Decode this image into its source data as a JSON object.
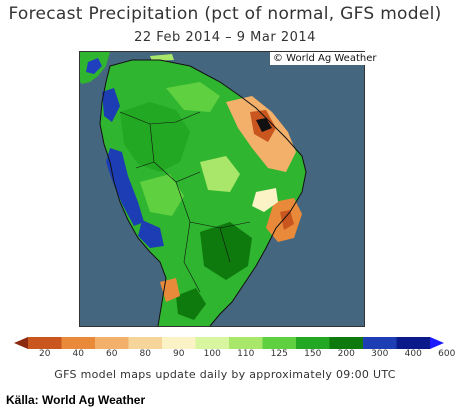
{
  "header": {
    "title": "Forecast Precipitation (pct of normal, GFS model)",
    "date_range": "22 Feb 2014 – 9 Mar 2014"
  },
  "map": {
    "credit": "© World Ag Weather",
    "ocean_color": "#44677f",
    "land_base_color": "#2fb52f"
  },
  "legend": {
    "labels": [
      "20",
      "40",
      "60",
      "80",
      "90",
      "100",
      "110",
      "125",
      "150",
      "200",
      "300",
      "400",
      "600"
    ],
    "colors": [
      "#8b2a10",
      "#c9551f",
      "#e88a3a",
      "#f3b06a",
      "#f6d59a",
      "#fbf2c6",
      "#d8f5a0",
      "#a8e76a",
      "#5fd040",
      "#23a823",
      "#0e7a0e",
      "#1c3db3",
      "#0a1a8a",
      "#1a1aff"
    ]
  },
  "footer": {
    "note": "GFS model maps update daily by approximately 09:00 UTC",
    "source": "Källa: World Ag Weather"
  }
}
